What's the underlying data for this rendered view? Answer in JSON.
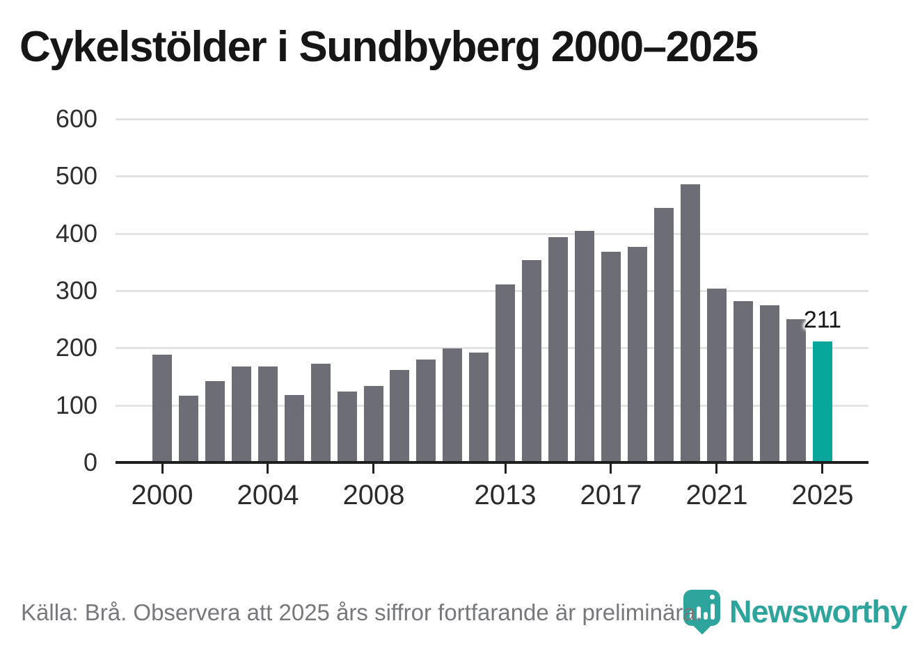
{
  "title": "Cykelstölder i Sundbyberg 2000–2025",
  "chart_data": {
    "type": "bar",
    "title": "Cykelstölder i Sundbyberg 2000–2025",
    "categories": [
      2000,
      2001,
      2002,
      2003,
      2004,
      2005,
      2006,
      2007,
      2008,
      2009,
      2010,
      2011,
      2012,
      2013,
      2014,
      2015,
      2016,
      2017,
      2018,
      2019,
      2020,
      2021,
      2022,
      2023,
      2024,
      2025
    ],
    "values": [
      188,
      116,
      142,
      168,
      168,
      118,
      172,
      124,
      133,
      162,
      180,
      199,
      192,
      311,
      354,
      393,
      404,
      368,
      377,
      444,
      486,
      304,
      282,
      274,
      250,
      211
    ],
    "ylim": [
      0,
      600
    ],
    "yticks": [
      0,
      100,
      200,
      300,
      400,
      500,
      600
    ],
    "xticks": [
      2000,
      2004,
      2008,
      2013,
      2017,
      2021,
      2025
    ],
    "grid": "horizontal",
    "legend": "none",
    "bar_color": "#6d6d75",
    "highlight_category": 2025,
    "highlight_color": "#07a79b",
    "annotation": {
      "text": "211",
      "category": 2025
    }
  },
  "footer": {
    "source": "Källa: Brå. Observera att 2025 års siffror fortfarande är preliminära."
  },
  "logo": {
    "brand": "Newsworthy",
    "icon": "newsworthy-pin-barchart-icon",
    "color": "#2da49c"
  }
}
